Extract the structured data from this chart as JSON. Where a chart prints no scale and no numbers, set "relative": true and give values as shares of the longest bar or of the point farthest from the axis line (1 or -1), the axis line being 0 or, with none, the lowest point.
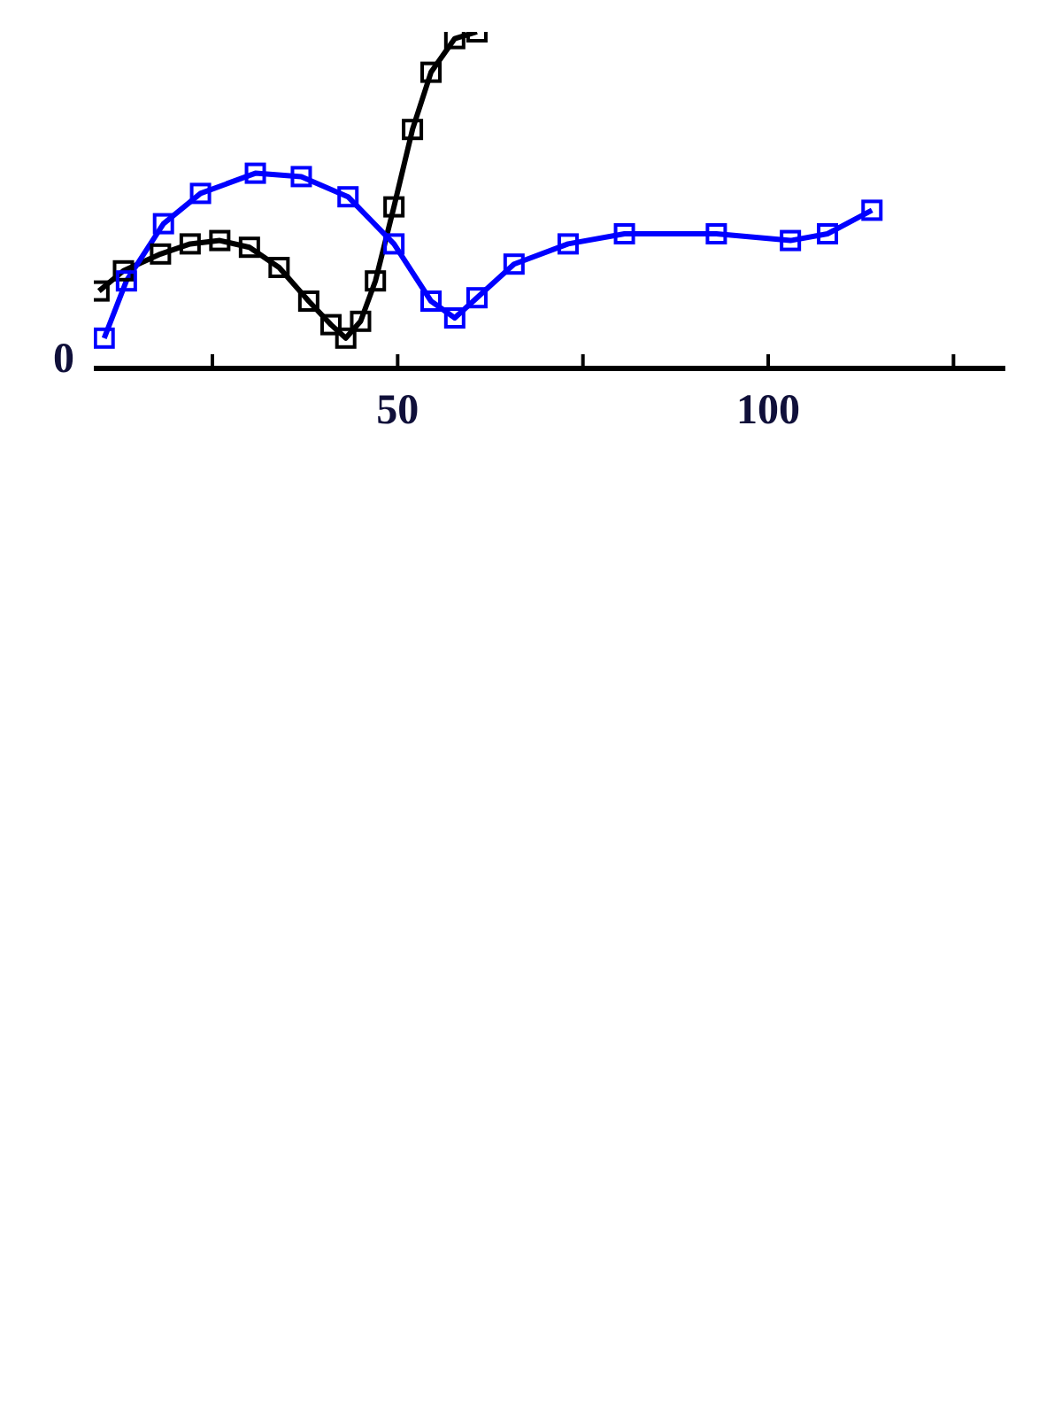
{
  "chart_data": {
    "type": "line",
    "relative": true,
    "xlim": [
      9,
      132
    ],
    "xticks": [
      {
        "value": 25,
        "label": null
      },
      50,
      {
        "value": 75,
        "label": null
      },
      100,
      {
        "value": 125,
        "label": null
      }
    ],
    "marker": "square",
    "annotations": [
      "0"
    ],
    "series": [
      {
        "color": "#000000",
        "x": [
          9.7,
          13,
          18,
          22,
          26,
          30,
          34,
          38,
          41,
          43,
          45,
          47,
          49.5,
          52,
          54.5,
          57.7,
          60.7
        ],
        "values": [
          0.23,
          0.29,
          0.34,
          0.37,
          0.38,
          0.36,
          0.3,
          0.2,
          0.13,
          0.09,
          0.14,
          0.26,
          0.48,
          0.71,
          0.88,
          0.98,
          1
        ]
      },
      {
        "color": "#0000ff",
        "x": [
          10.4,
          13.4,
          18.4,
          23.4,
          30.8,
          37,
          43.3,
          49.5,
          54.5,
          57.7,
          60.7,
          65.7,
          73,
          80.6,
          93,
          103,
          108,
          114
        ],
        "values": [
          0.09,
          0.26,
          0.43,
          0.52,
          0.58,
          0.57,
          0.51,
          0.37,
          0.2,
          0.15,
          0.21,
          0.31,
          0.37,
          0.4,
          0.4,
          0.38,
          0.4,
          0.47
        ]
      }
    ]
  }
}
